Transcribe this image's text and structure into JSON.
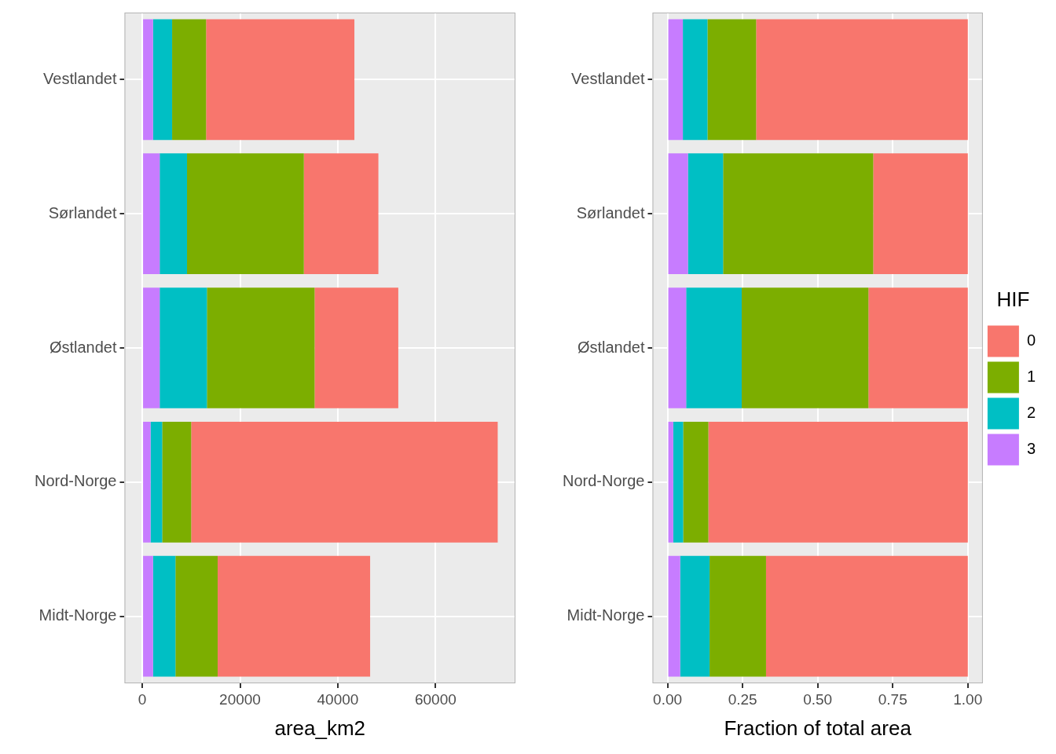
{
  "chart_data": [
    {
      "type": "bar",
      "orientation": "horizontal",
      "stacked": true,
      "grid": true,
      "xlabel": "area_km2",
      "categories": [
        "Vestlandet",
        "Sørlandet",
        "Østlandet",
        "Nord-Norge",
        "Midt-Norge"
      ],
      "series": [
        {
          "name": "0",
          "color": "#F8766D",
          "values": [
            30340,
            15250,
            17120,
            62710,
            31190
          ]
        },
        {
          "name": "1",
          "color": "#7CAE00",
          "values": [
            6950,
            23900,
            22030,
            5930,
            8640
          ]
        },
        {
          "name": "2",
          "color": "#00BFC4",
          "values": [
            3900,
            5590,
            9660,
            2380,
            4580
          ]
        },
        {
          "name": "3",
          "color": "#C77CFF",
          "values": [
            2200,
            3560,
            3560,
            1690,
            2200
          ]
        }
      ],
      "xlim": [
        -3635,
        76335
      ],
      "xticks": [
        0,
        20000,
        40000,
        60000
      ]
    },
    {
      "type": "bar",
      "orientation": "horizontal",
      "stacked": true,
      "grid": true,
      "xlabel": "Fraction of total area",
      "legend": "right",
      "legend_title": "HIF",
      "categories": [
        "Vestlandet",
        "Sørlandet",
        "Østlandet",
        "Nord-Norge",
        "Midt-Norge"
      ],
      "series": [
        {
          "name": "0",
          "color": "#F8766D",
          "values": [
            0.705,
            0.315,
            0.331,
            0.864,
            0.672
          ]
        },
        {
          "name": "1",
          "color": "#7CAE00",
          "values": [
            0.162,
            0.5,
            0.422,
            0.084,
            0.188
          ]
        },
        {
          "name": "2",
          "color": "#00BFC4",
          "values": [
            0.082,
            0.117,
            0.185,
            0.033,
            0.098
          ]
        },
        {
          "name": "3",
          "color": "#C77CFF",
          "values": [
            0.051,
            0.068,
            0.062,
            0.019,
            0.042
          ]
        }
      ],
      "xlim": [
        -0.05,
        1.05
      ],
      "xticks": [
        {
          "value": 0,
          "label": "0.00"
        },
        {
          "value": 0.25,
          "label": "0.25"
        },
        {
          "value": 0.5,
          "label": "0.50"
        },
        {
          "value": 0.75,
          "label": "0.75"
        },
        {
          "value": 1,
          "label": "1.00"
        }
      ]
    }
  ]
}
